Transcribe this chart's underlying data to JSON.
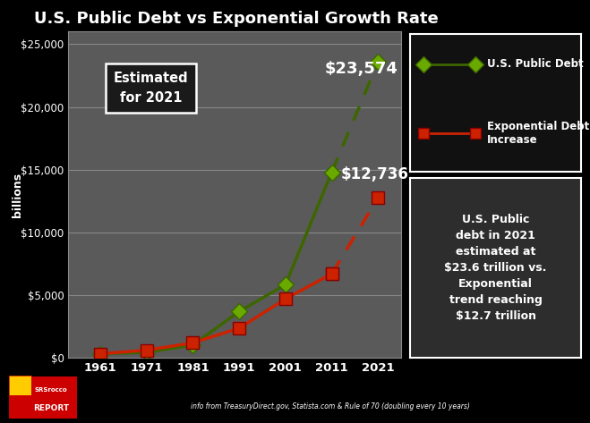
{
  "title": "U.S. Public Debt vs Exponential Growth Rate",
  "background_color": "#000000",
  "plot_bg_color": "#5a5a5a",
  "ylabel": "billions",
  "xlabel_ticks": [
    "1961",
    "1971",
    "1981",
    "1991",
    "2001",
    "2011",
    "2021"
  ],
  "x_values": [
    1961,
    1971,
    1981,
    1991,
    2001,
    2011,
    2021
  ],
  "public_debt": [
    292,
    408,
    994,
    3665,
    5807,
    14790,
    23574
  ],
  "exp_trend": [
    292,
    584,
    1168,
    2336,
    4672,
    6680,
    12736
  ],
  "debt_color": "#6aaa00",
  "debt_color_dark": "#3d6600",
  "exp_color": "#cc2200",
  "exp_color_bright": "#ff3300",
  "ylim": [
    0,
    26000
  ],
  "ytick_step": 5000,
  "annotation_23574": "$23,574",
  "annotation_12736": "$12,736",
  "estimated_box_text": "Estimated\nfor 2021",
  "legend_label_debt": "U.S. Public Debt",
  "legend_label_exp": "Exponential Debt\nIncrease",
  "info_text": "info from TreasuryDirect.gov, Statista.com & Rule of 70 (doubling every 10 years)",
  "textbox_text": "U.S. Public\ndebt in 2021\nestimated at\n$23.6 trillion vs.\nExponential\ntrend reaching\n$12.7 trillion",
  "legend_bg": "#111111",
  "textbox_bg": "#2d2d2d"
}
